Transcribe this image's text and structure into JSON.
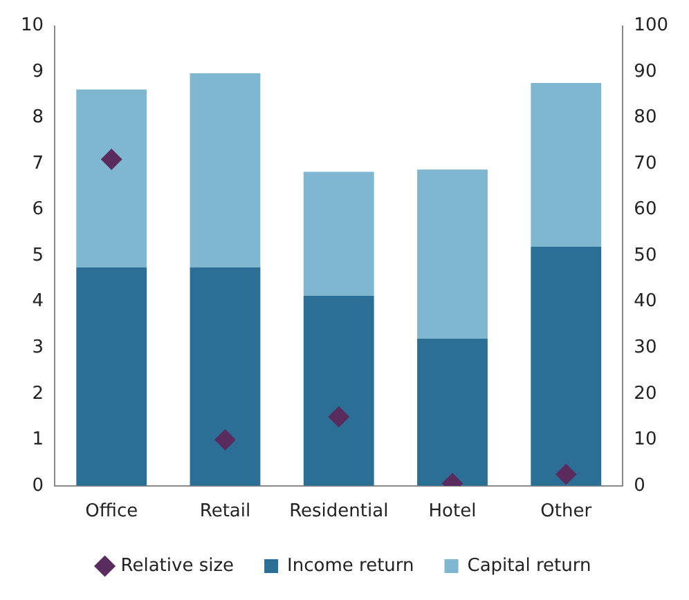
{
  "chart_data": {
    "type": "bar",
    "stacked": true,
    "categories": [
      "Office",
      "Retail",
      "Residential",
      "Hotel",
      "Other"
    ],
    "series": [
      {
        "name": "Income return",
        "color": "#2b6f97",
        "values": [
          4.75,
          4.75,
          4.13,
          3.2,
          5.2
        ]
      },
      {
        "name": "Capital return",
        "color": "#7fb7d1",
        "values": [
          3.87,
          4.22,
          2.7,
          3.68,
          3.56
        ]
      },
      {
        "name": "Relative size",
        "type": "scatter",
        "axis": "y2",
        "marker": "diamond",
        "color": "#5a2c5e",
        "values": [
          71,
          10,
          15,
          0.5,
          2.5
        ]
      }
    ],
    "ylim": [
      0,
      10
    ],
    "yticks": [
      0,
      1,
      2,
      3,
      4,
      5,
      6,
      7,
      8,
      9,
      10
    ],
    "y2lim": [
      0,
      100
    ],
    "y2ticks": [
      0,
      10,
      20,
      30,
      40,
      50,
      60,
      70,
      80,
      90,
      100
    ],
    "grid": false,
    "legend": "bottom"
  }
}
